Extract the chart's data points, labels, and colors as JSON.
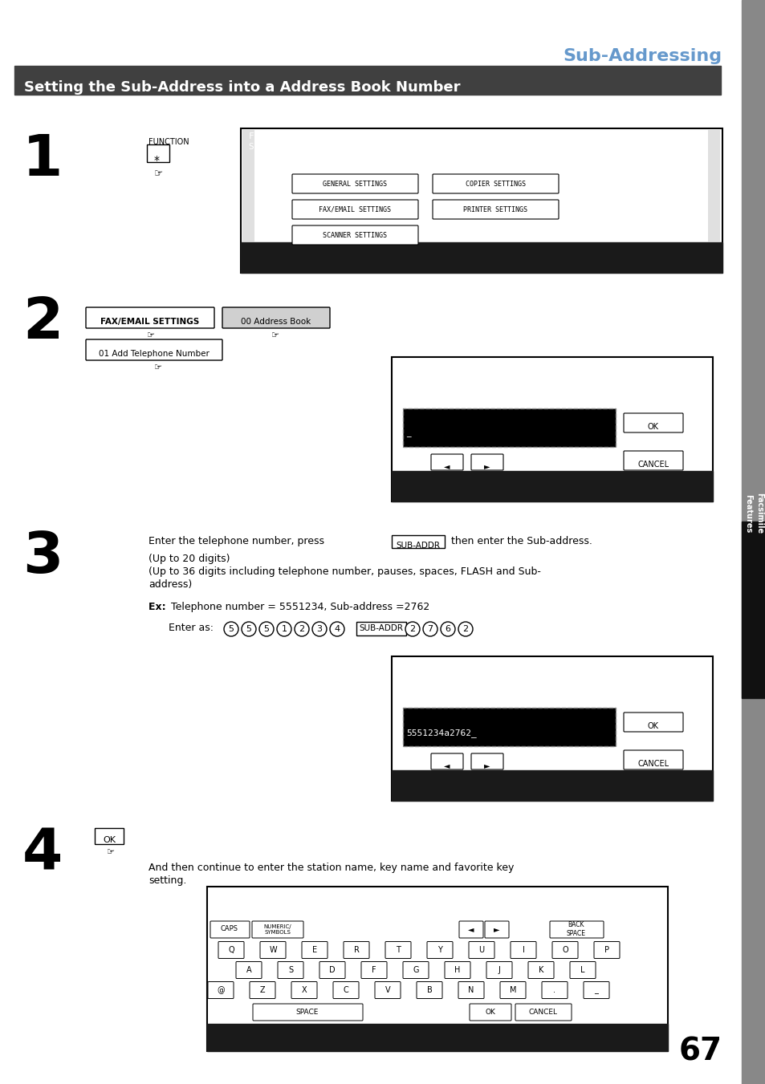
{
  "page_bg": "#ffffff",
  "sidebar_color": "#888888",
  "title_color": "#6699cc",
  "header_bg": "#404040",
  "header_text": "Setting the Sub-Address into a Address Book Number",
  "page_title": "Sub-Addressing",
  "page_number": "67",
  "sidebar_text": "Facsimile\nFeatures"
}
